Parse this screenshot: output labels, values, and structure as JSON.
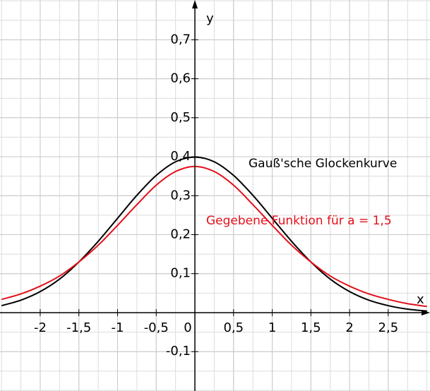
{
  "chart_data": {
    "type": "line",
    "x_label": "x",
    "y_label": "y",
    "x": [
      -2.5,
      -2.25,
      -2,
      -1.75,
      -1.5,
      -1.25,
      -1,
      -0.75,
      -0.5,
      -0.25,
      0,
      0.25,
      0.5,
      0.75,
      1,
      1.25,
      1.5,
      1.75,
      2,
      2.25,
      2.5,
      2.75,
      3
    ],
    "series": [
      {
        "name": "Gauß'sche Glockenkurve",
        "color": "#000000",
        "values": [
          0.018,
          0.032,
          0.054,
          0.086,
          0.13,
          0.183,
          0.242,
          0.301,
          0.352,
          0.387,
          0.399,
          0.387,
          0.352,
          0.301,
          0.242,
          0.183,
          0.13,
          0.086,
          0.054,
          0.032,
          0.018,
          0.009,
          0.004
        ]
      },
      {
        "name": "Gegebene Funktion für a = 1,5",
        "color": "#e3101a",
        "values": [
          0.034,
          0.048,
          0.068,
          0.094,
          0.13,
          0.173,
          0.224,
          0.277,
          0.327,
          0.362,
          0.375,
          0.362,
          0.327,
          0.277,
          0.224,
          0.173,
          0.13,
          0.094,
          0.068,
          0.048,
          0.034,
          0.023,
          0.016
        ]
      }
    ],
    "xlim": [
      -2.52,
      3.04
    ],
    "ylim": [
      -0.201,
      0.802
    ],
    "xticks": [
      {
        "value": -2,
        "label": "-2"
      },
      {
        "value": -1.5,
        "label": "-1,5"
      },
      {
        "value": -1,
        "label": "-1"
      },
      {
        "value": -0.5,
        "label": "-0,5"
      },
      {
        "value": 0,
        "label": "0"
      },
      {
        "value": 0.5,
        "label": "0,5"
      },
      {
        "value": 1,
        "label": "1"
      },
      {
        "value": 1.5,
        "label": "1,5"
      },
      {
        "value": 2,
        "label": "2"
      },
      {
        "value": 2.5,
        "label": "2,5"
      }
    ],
    "yticks": [
      {
        "value": -0.1,
        "label": "-0,1"
      },
      {
        "value": 0.1,
        "label": "0,1"
      },
      {
        "value": 0.2,
        "label": "0,2"
      },
      {
        "value": 0.3,
        "label": "0,3"
      },
      {
        "value": 0.4,
        "label": "0,4"
      },
      {
        "value": 0.5,
        "label": "0,5"
      },
      {
        "value": 0.6,
        "label": "0,6"
      },
      {
        "value": 0.7,
        "label": "0,7"
      }
    ],
    "grid": true
  }
}
